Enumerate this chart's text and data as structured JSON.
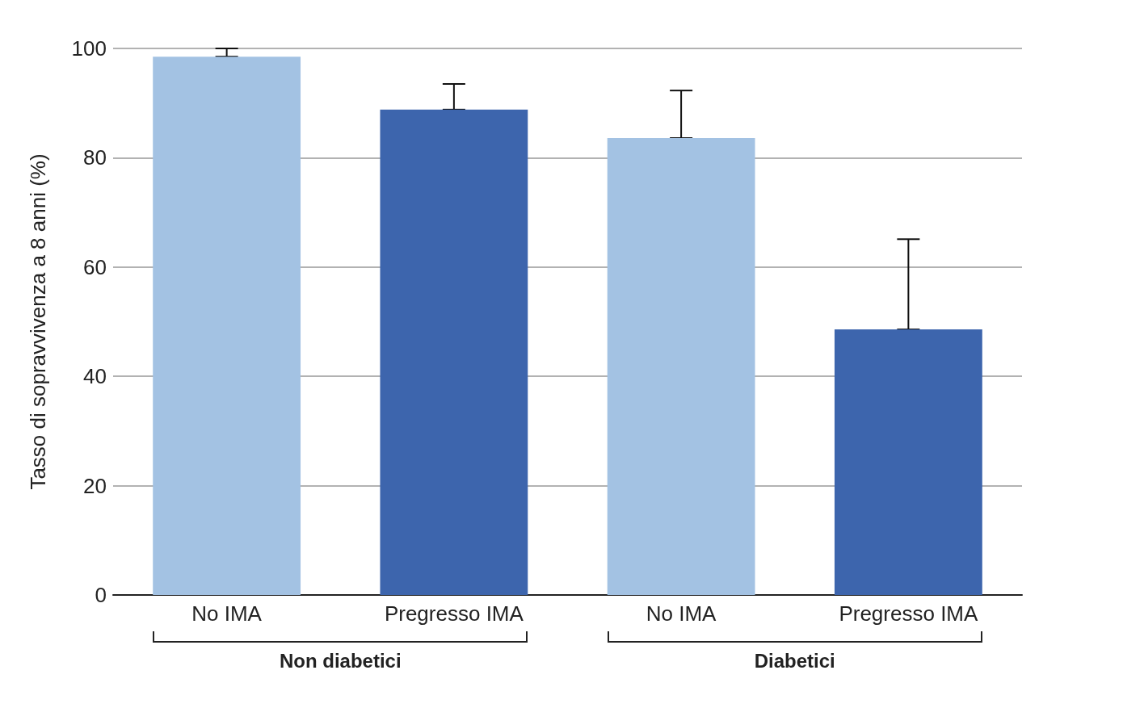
{
  "chart_data": {
    "type": "bar",
    "ylabel": "Tasso di sopravvivenza a 8 anni (%)",
    "categories": [
      "No IMA",
      "Pregresso IMA",
      "No IMA",
      "Pregresso IMA"
    ],
    "values": [
      98.5,
      88.8,
      83.6,
      48.6
    ],
    "colors": [
      "#a3c2e3",
      "#3d65ad",
      "#a3c2e3",
      "#3d65ad"
    ],
    "errors": [
      [
        98.5,
        100
      ],
      [
        88.8,
        93.5
      ],
      [
        83.6,
        92.3
      ],
      [
        48.6,
        65.1
      ]
    ],
    "ylim": [
      0,
      100
    ],
    "yticks": [
      0,
      20,
      40,
      60,
      80,
      100
    ],
    "grid": "y",
    "annotations": [
      "Non diabetici",
      "Diabetici"
    ]
  }
}
